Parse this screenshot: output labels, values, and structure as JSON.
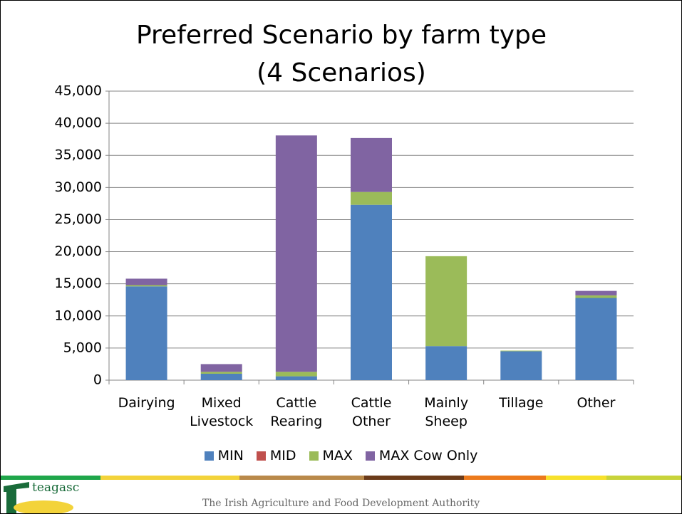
{
  "chart_data": {
    "type": "stacked_bar",
    "title": "Preferred Scenario by farm type",
    "subtitle": "(4 Scenarios)",
    "categories": [
      "Dairying",
      "Mixed Livestock",
      "Cattle Rearing",
      "Cattle Other",
      "Mainly Sheep",
      "Tillage",
      "Other"
    ],
    "series": [
      {
        "name": "MIN",
        "color": "#4f81bd",
        "values": [
          14600,
          1000,
          600,
          27300,
          5300,
          4500,
          12800
        ]
      },
      {
        "name": "MID",
        "color": "#c0504d",
        "values": [
          0,
          0,
          0,
          0,
          0,
          0,
          0
        ]
      },
      {
        "name": "MAX",
        "color": "#9bbb59",
        "values": [
          200,
          300,
          700,
          2000,
          14000,
          100,
          400
        ]
      },
      {
        "name": "MAX Cow Only",
        "color": "#8064a2",
        "values": [
          1000,
          1200,
          36800,
          8400,
          0,
          0,
          700
        ]
      }
    ],
    "ylim": [
      0,
      45000
    ],
    "yticks": [
      0,
      {
        "value": 5000,
        "label": "5,000"
      },
      {
        "value": 10000,
        "label": "10,000"
      },
      {
        "value": 15000,
        "label": "15,000"
      },
      {
        "value": 20000,
        "label": "20,000"
      },
      {
        "value": 25000,
        "label": "25,000"
      },
      {
        "value": 30000,
        "label": "30,000"
      },
      {
        "value": 35000,
        "label": "35,000"
      },
      {
        "value": 40000,
        "label": "40,000"
      },
      {
        "value": 45000,
        "label": "45,000"
      }
    ],
    "grid": true,
    "legend": "bottom"
  },
  "footer": {
    "logo": "teagasc",
    "text": "The Irish Agriculture and Food Development Authority"
  }
}
